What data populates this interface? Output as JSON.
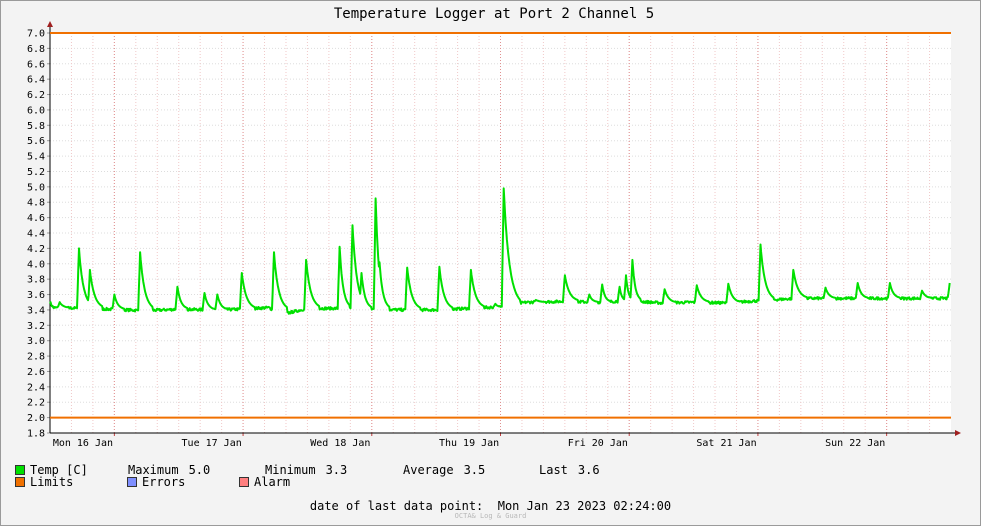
{
  "chart_data": {
    "type": "line",
    "title": "Temperature Logger at Port 2 Channel 5",
    "ylim": [
      1.8,
      7.0
    ],
    "y_ticks": [
      "1.8",
      "2.0",
      "2.2",
      "2.4",
      "2.6",
      "2.8",
      "3.0",
      "3.2",
      "3.4",
      "3.6",
      "3.8",
      "4.0",
      "4.2",
      "4.4",
      "4.6",
      "4.8",
      "5.0",
      "5.2",
      "5.4",
      "5.6",
      "5.8",
      "6.0",
      "6.2",
      "6.4",
      "6.6",
      "6.8",
      "7.0"
    ],
    "x_tick_labels": [
      "Mon 16 Jan",
      "Tue 17 Jan",
      "Wed 18 Jan",
      "Thu 19 Jan",
      "Fri 20 Jan",
      "Sat 21 Jan",
      "Sun 22 Jan"
    ],
    "grid": true,
    "limits": {
      "lower": 2.0,
      "upper": 7.0
    },
    "series": [
      {
        "name": "Temp [C]",
        "color": "#00e000",
        "base": [
          [
            0.0,
            3.5
          ],
          [
            0.05,
            3.43
          ],
          [
            0.5,
            3.42
          ],
          [
            0.9,
            3.41
          ],
          [
            1.5,
            3.39
          ],
          [
            2.0,
            3.41
          ],
          [
            2.5,
            3.4
          ],
          [
            3.0,
            3.41
          ],
          [
            3.4,
            3.43
          ],
          [
            3.6,
            3.34
          ],
          [
            4.0,
            3.42
          ],
          [
            4.5,
            3.42
          ],
          [
            5.0,
            3.41
          ],
          [
            5.5,
            3.4
          ],
          [
            6.0,
            3.4
          ],
          [
            6.5,
            3.42
          ],
          [
            7.0,
            3.44
          ],
          [
            7.4,
            3.5
          ],
          [
            8.0,
            3.51
          ],
          [
            8.5,
            3.5
          ],
          [
            9.0,
            3.52
          ],
          [
            9.5,
            3.49
          ],
          [
            10.0,
            3.5
          ],
          [
            10.5,
            3.49
          ],
          [
            11.0,
            3.52
          ],
          [
            11.6,
            3.55
          ]
        ],
        "spikes": [
          [
            0.15,
            3.5,
            0.15
          ],
          [
            0.45,
            4.2,
            0.2
          ],
          [
            0.62,
            3.92,
            0.2
          ],
          [
            1.0,
            3.6,
            0.15
          ],
          [
            1.4,
            4.15,
            0.2
          ],
          [
            1.98,
            3.7,
            0.15
          ],
          [
            2.4,
            3.62,
            0.15
          ],
          [
            2.6,
            3.6,
            0.15
          ],
          [
            2.98,
            3.88,
            0.2
          ],
          [
            3.48,
            4.15,
            0.2
          ],
          [
            3.98,
            4.05,
            0.2
          ],
          [
            4.5,
            4.22,
            0.15
          ],
          [
            4.7,
            4.5,
            0.2
          ],
          [
            4.84,
            3.88,
            0.15
          ],
          [
            5.06,
            4.85,
            0.15
          ],
          [
            5.12,
            4.02,
            0.15
          ],
          [
            5.55,
            3.95,
            0.2
          ],
          [
            6.05,
            3.96,
            0.2
          ],
          [
            6.54,
            3.92,
            0.2
          ],
          [
            6.92,
            3.48,
            0.1
          ],
          [
            7.05,
            4.98,
            0.25
          ],
          [
            7.55,
            3.53,
            0.15
          ],
          [
            8.0,
            3.85,
            0.2
          ],
          [
            8.38,
            3.6,
            0.12
          ],
          [
            8.58,
            3.73,
            0.12
          ],
          [
            8.85,
            3.7,
            0.1
          ],
          [
            8.95,
            3.85,
            0.1
          ],
          [
            9.05,
            4.05,
            0.12
          ],
          [
            9.55,
            3.67,
            0.18
          ],
          [
            10.05,
            3.72,
            0.18
          ],
          [
            10.54,
            3.74,
            0.18
          ],
          [
            11.04,
            4.25,
            0.2
          ],
          [
            11.55,
            3.92,
            0.2
          ],
          [
            12.05,
            3.69,
            0.15
          ],
          [
            12.55,
            3.75,
            0.15
          ],
          [
            13.05,
            3.75,
            0.15
          ],
          [
            13.55,
            3.65,
            0.15
          ],
          [
            13.98,
            3.75,
            0.1
          ]
        ]
      }
    ],
    "legend": {
      "temp_label": "Temp [C]",
      "limits_label": "Limits",
      "errors_label": "Errors",
      "alarm_label": "Alarm",
      "limits_color": "#f07000",
      "errors_color": "#7f8fff",
      "alarm_color": "#ff7f7f"
    },
    "stats": {
      "maximum_label": "Maximum",
      "maximum_value": "5.0",
      "minimum_label": "Minimum",
      "minimum_value": "3.3",
      "average_label": "Average",
      "average_value": "3.5",
      "last_label": "Last",
      "last_value": "3.6"
    },
    "last_data_point": "date of last data point:  Mon Jan 23 2023 02:24:00",
    "credit": "OCTA& Log & Guard"
  }
}
